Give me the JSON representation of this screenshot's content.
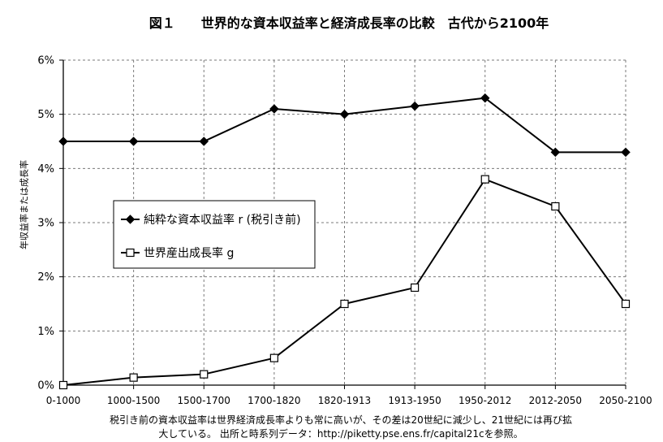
{
  "chart_data": {
    "type": "line",
    "title": "図１　　世界的な資本収益率と経済成長率の比較　古代から2100年",
    "xlabel": "",
    "ylabel": "年収益率または成長率",
    "categories": [
      "0-1000",
      "1000-1500",
      "1500-1700",
      "1700-1820",
      "1820-1913",
      "1913-1950",
      "1950-2012",
      "2012-2050",
      "2050-2100"
    ],
    "ylim": [
      0,
      6
    ],
    "yticks": [
      {
        "value": 0,
        "label": "0%"
      },
      {
        "value": 1,
        "label": "1%"
      },
      {
        "value": 2,
        "label": "2%"
      },
      {
        "value": 3,
        "label": "3%"
      },
      {
        "value": 4,
        "label": "4%"
      },
      {
        "value": 5,
        "label": "5%"
      },
      {
        "value": 6,
        "label": "6%"
      }
    ],
    "series": [
      {
        "name": "純粋な資本収益率 r (税引き前)",
        "marker": "filled-diamond",
        "values": [
          4.5,
          4.5,
          4.5,
          5.1,
          5.0,
          5.15,
          5.3,
          4.3,
          4.3
        ]
      },
      {
        "name": "世界産出成長率 g",
        "marker": "open-square",
        "values": [
          0.0,
          0.14,
          0.2,
          0.5,
          1.5,
          1.8,
          3.8,
          3.3,
          1.5
        ]
      }
    ],
    "grid": true,
    "legend": "center-left",
    "colors": {
      "line": "#000000",
      "grid": "#7a7a7a"
    }
  },
  "caption": {
    "line1": "税引き前の資本収益率は世界経済成長率よりも常に高いが、その差は20世紀に減少し、21世紀には再び拡",
    "line2": "大している。 出所と時系列データ：http://piketty.pse.ens.fr/capital21cを参照。"
  }
}
